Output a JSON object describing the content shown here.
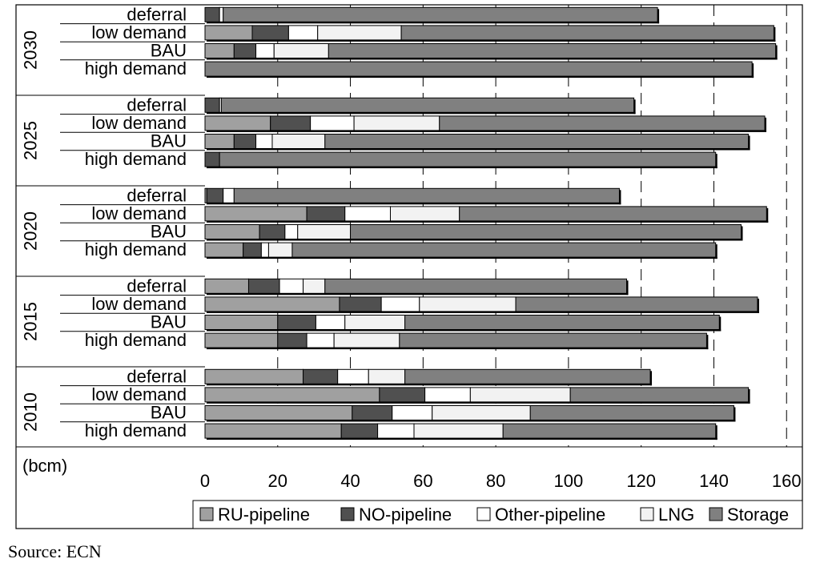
{
  "chart_data": {
    "type": "bar",
    "orientation": "horizontal",
    "stacked": true,
    "unit_label": "(bcm)",
    "xlim": [
      0,
      160
    ],
    "x_ticks": [
      0,
      20,
      40,
      60,
      80,
      100,
      120,
      140,
      160
    ],
    "grid": "x-axis dashed gridlines",
    "legend_position": "bottom",
    "groups": [
      {
        "year": "2030",
        "rows": [
          {
            "scenario": "deferral",
            "values": [
              0,
              4,
              1,
              0,
              119.5
            ]
          },
          {
            "scenario": "low demand",
            "values": [
              13,
              10,
              8,
              23,
              102.5
            ]
          },
          {
            "scenario": "BAU",
            "values": [
              8,
              6,
              5,
              15,
              123
            ]
          },
          {
            "scenario": "high demand",
            "values": [
              0,
              0,
              0,
              0,
              150.5
            ]
          }
        ]
      },
      {
        "year": "2025",
        "rows": [
          {
            "scenario": "deferral",
            "values": [
              0,
              4,
              0.5,
              0,
              113.5
            ]
          },
          {
            "scenario": "low demand",
            "values": [
              18,
              11,
              12,
              23.5,
              89.5
            ]
          },
          {
            "scenario": "BAU",
            "values": [
              8,
              6,
              4.5,
              14.5,
              116.5
            ]
          },
          {
            "scenario": "high demand",
            "values": [
              0,
              4,
              0,
              0,
              136.5
            ]
          }
        ]
      },
      {
        "year": "2020",
        "rows": [
          {
            "scenario": "deferral",
            "values": [
              0.5,
              4.5,
              3,
              0,
              106
            ]
          },
          {
            "scenario": "low demand",
            "values": [
              28,
              10.5,
              12.5,
              19,
              84.5
            ]
          },
          {
            "scenario": "BAU",
            "values": [
              15,
              7,
              3.5,
              14.5,
              107.5
            ]
          },
          {
            "scenario": "high demand",
            "values": [
              10.5,
              5,
              2,
              6.5,
              116.5
            ]
          }
        ]
      },
      {
        "year": "2015",
        "rows": [
          {
            "scenario": "deferral",
            "values": [
              12,
              8.5,
              6.5,
              6,
              83
            ]
          },
          {
            "scenario": "low demand",
            "values": [
              37,
              11.5,
              10.5,
              26.5,
              66.5
            ]
          },
          {
            "scenario": "BAU",
            "values": [
              20,
              10.5,
              8,
              16.5,
              86.5
            ]
          },
          {
            "scenario": "high demand",
            "values": [
              20,
              8,
              7.5,
              18,
              84.5
            ]
          }
        ]
      },
      {
        "year": "2010",
        "rows": [
          {
            "scenario": "deferral",
            "values": [
              27,
              9.5,
              8.5,
              10,
              67.5
            ]
          },
          {
            "scenario": "low demand",
            "values": [
              48,
              12.5,
              12.5,
              27.5,
              49
            ]
          },
          {
            "scenario": "BAU",
            "values": [
              40.5,
              11,
              11,
              27,
              56
            ]
          },
          {
            "scenario": "high demand",
            "values": [
              37.5,
              10,
              10,
              24.5,
              58.5
            ]
          }
        ]
      }
    ],
    "series": [
      {
        "name": "RU-pipeline",
        "color": "#a0a0a0"
      },
      {
        "name": "NO-pipeline",
        "color": "#505050"
      },
      {
        "name": "Other-pipeline",
        "color": "#ffffff"
      },
      {
        "name": "LNG",
        "color": "#f2f2f2"
      },
      {
        "name": "Storage",
        "color": "#808080"
      }
    ]
  },
  "source": "Source: ECN"
}
